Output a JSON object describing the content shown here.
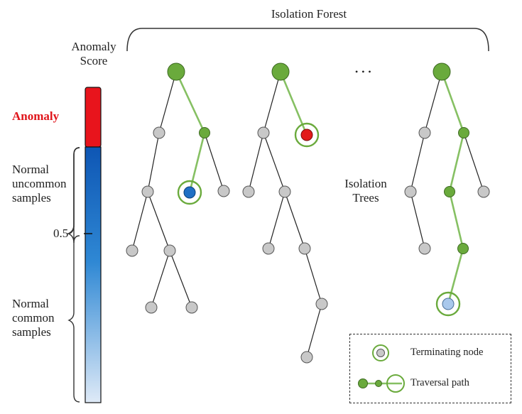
{
  "diagram": {
    "title": "Isolation Forest",
    "ellipsis": "• • •",
    "trees_label_line1": "Isolation",
    "trees_label_line2": "Trees"
  },
  "score_bar": {
    "title_line1": "Anomaly",
    "title_line2": "Score",
    "anomaly_label": "Anomaly",
    "uncommon_line1": "Normal",
    "uncommon_line2": "uncommon",
    "uncommon_line3": "samples",
    "threshold_label": "0.5",
    "common_line1": "Normal",
    "common_line2": "common",
    "common_line3": "samples"
  },
  "legend": {
    "terminating_label": "Terminating node",
    "traversal_label": "Traversal path"
  },
  "colors": {
    "normal_node": "#c8c8c8",
    "path_green": "#6aaa3c",
    "path_line": "#86c063",
    "anomaly_red": "#e21a1a",
    "blue_node": "#1f6fc4",
    "light_blue_node": "#a9c8ec"
  }
}
